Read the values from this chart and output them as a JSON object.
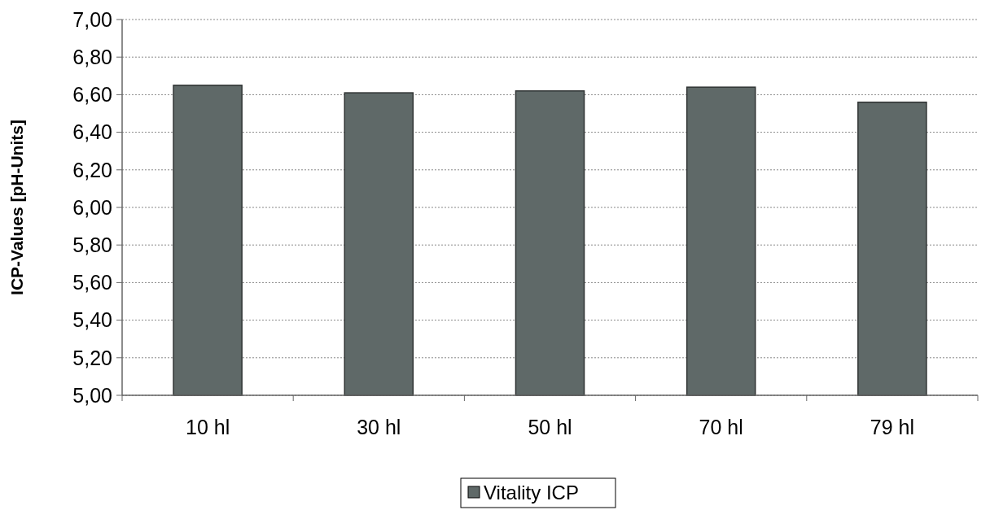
{
  "chart_data": {
    "type": "bar",
    "ylabel": "ICP-Values [pH-Units]",
    "categories": [
      "10 hl",
      "30 hl",
      "50 hl",
      "70 hl",
      "79 hl"
    ],
    "series": [
      {
        "name": "Vitality ICP",
        "color": "#5f6968",
        "values": [
          6.65,
          6.61,
          6.62,
          6.64,
          6.56
        ]
      }
    ],
    "ylim": [
      5,
      7
    ],
    "yticks": [
      {
        "value": 5,
        "label": "5,00"
      },
      {
        "value": 5.2,
        "label": "5,20"
      },
      {
        "value": 5.4,
        "label": "5,40"
      },
      {
        "value": 5.6,
        "label": "5,60"
      },
      {
        "value": 5.8,
        "label": "5,80"
      },
      {
        "value": 6,
        "label": "6,00"
      },
      {
        "value": 6.2,
        "label": "6,20"
      },
      {
        "value": 6.4,
        "label": "6,40"
      },
      {
        "value": 6.6,
        "label": "6,60"
      },
      {
        "value": 6.8,
        "label": "6,80"
      },
      {
        "value": 7,
        "label": "7,00"
      }
    ],
    "grid": "y",
    "legend": "bottom"
  }
}
